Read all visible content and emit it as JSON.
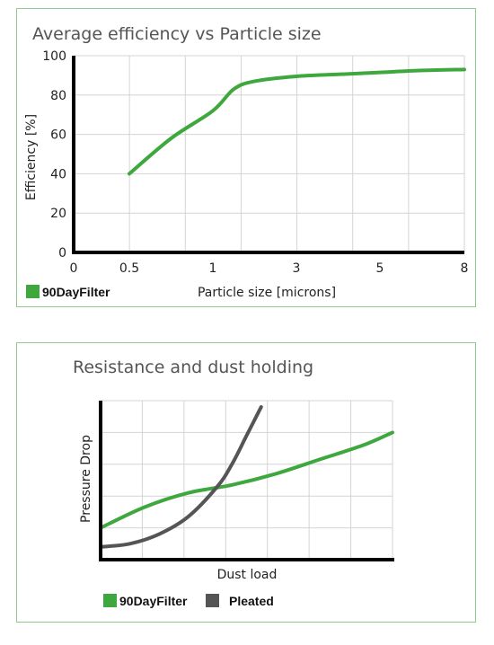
{
  "colors": {
    "green": "#3ea83e",
    "gray": "#555555"
  },
  "chart_data": [
    {
      "type": "line",
      "title": "Average efficiency vs Particle size",
      "xlabel": "Particle size [microns]",
      "ylabel": "Efficiency [%]",
      "x_ticks": [
        "0",
        "0.5",
        "1",
        "3",
        "5",
        "8"
      ],
      "y_ticks": [
        0,
        20,
        40,
        60,
        80,
        100
      ],
      "ylim": [
        0,
        100
      ],
      "grid": true,
      "legend_position": "bottom-left",
      "series": [
        {
          "name": "90DayFilter",
          "color": "#3ea83e",
          "x": [
            "0.5",
            "0.75",
            "1",
            "1.5",
            "2",
            "3",
            "4",
            "5",
            "6.5",
            "8"
          ],
          "y": [
            40,
            58,
            72,
            83,
            87,
            89.5,
            90.5,
            91.5,
            92.5,
            93
          ]
        }
      ]
    },
    {
      "type": "line",
      "title": "Resistance and dust holding",
      "xlabel": "Dust load",
      "ylabel": "Pressure Drop",
      "grid": true,
      "legend_position": "bottom-left",
      "series": [
        {
          "name": "90DayFilter",
          "color": "#3ea83e",
          "x": [
            0,
            0.15,
            0.3,
            0.45,
            0.6,
            0.75,
            0.9,
            1
          ],
          "y": [
            0.2,
            0.33,
            0.42,
            0.47,
            0.54,
            0.63,
            0.72,
            0.8
          ]
        },
        {
          "name": "Pleated",
          "color": "#555555",
          "x": [
            0,
            0.1,
            0.2,
            0.3,
            0.4,
            0.45,
            0.5,
            0.55
          ],
          "y": [
            0.08,
            0.1,
            0.16,
            0.27,
            0.46,
            0.6,
            0.78,
            0.96
          ]
        }
      ]
    }
  ]
}
